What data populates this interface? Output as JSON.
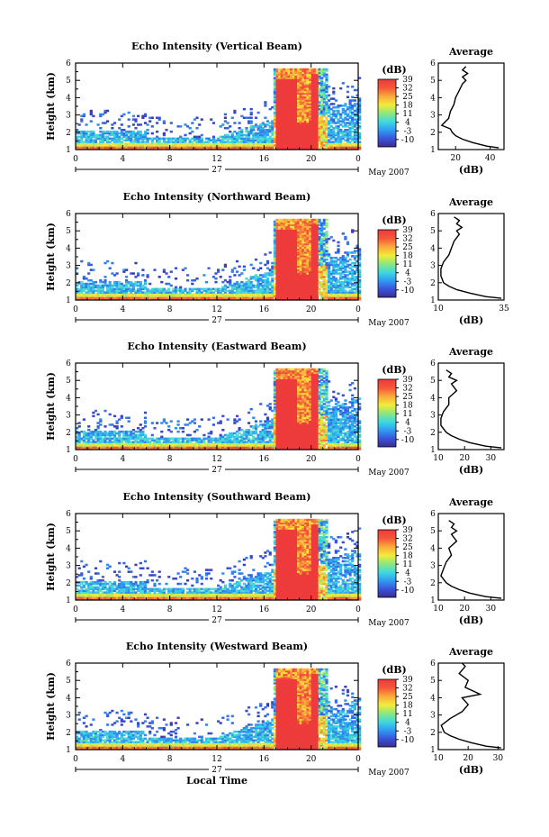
{
  "chart_data": [
    {
      "type": "heatmap",
      "title": "Echo Intensity (Vertical Beam)",
      "ylabel": "Height (km)",
      "ylim": [
        1,
        6
      ],
      "yticks": [
        1,
        2,
        3,
        4,
        5,
        6
      ],
      "xlim": [
        0,
        24
      ],
      "xticks": [
        "0",
        "4",
        "8",
        "12",
        "16",
        "20",
        "0"
      ],
      "date_day": "27",
      "date_month": "May 2007",
      "colorbar": {
        "label": "(dB)",
        "range": [
          -16,
          39
        ],
        "ticks": [
          "39",
          "32",
          "25",
          "18",
          "11",
          "4",
          "-3",
          "-10"
        ]
      },
      "average": {
        "title": "Average",
        "xlabel": "(dB)",
        "xlim": [
          10,
          48
        ],
        "xticks": [
          "20",
          "40"
        ],
        "profile": [
          [
            45,
            1.1
          ],
          [
            38,
            1.2
          ],
          [
            30,
            1.4
          ],
          [
            24,
            1.6
          ],
          [
            20,
            1.8
          ],
          [
            18,
            2.0
          ],
          [
            17,
            2.2
          ],
          [
            12,
            2.4
          ],
          [
            16,
            2.8
          ],
          [
            17,
            3.2
          ],
          [
            19,
            3.6
          ],
          [
            20,
            4.0
          ],
          [
            22,
            4.4
          ],
          [
            24,
            4.8
          ],
          [
            26,
            5.0
          ],
          [
            24,
            5.2
          ],
          [
            27,
            5.4
          ],
          [
            24,
            5.6
          ],
          [
            26,
            5.8
          ]
        ]
      }
    },
    {
      "type": "heatmap",
      "title": "Echo Intensity (Northward Beam)",
      "ylabel": "Height (km)",
      "ylim": [
        1,
        6
      ],
      "yticks": [
        1,
        2,
        3,
        4,
        5,
        6
      ],
      "xlim": [
        0,
        24
      ],
      "xticks": [
        "0",
        "4",
        "8",
        "12",
        "16",
        "20",
        "0"
      ],
      "date_day": "27",
      "date_month": "May 2007",
      "colorbar": {
        "label": "(dB)",
        "range": [
          -16,
          39
        ],
        "ticks": [
          "39",
          "32",
          "25",
          "18",
          "11",
          "4",
          "-3",
          "-10"
        ]
      },
      "average": {
        "title": "Average",
        "xlabel": "(dB)",
        "xlim": [
          10,
          35
        ],
        "xticks": [
          "10",
          "35"
        ],
        "profile": [
          [
            34,
            1.1
          ],
          [
            28,
            1.2
          ],
          [
            22,
            1.4
          ],
          [
            17,
            1.6
          ],
          [
            14,
            1.8
          ],
          [
            12,
            2.0
          ],
          [
            11,
            2.4
          ],
          [
            11,
            2.8
          ],
          [
            12,
            3.2
          ],
          [
            14,
            3.6
          ],
          [
            15,
            4.0
          ],
          [
            16,
            4.4
          ],
          [
            18,
            4.8
          ],
          [
            17,
            5.0
          ],
          [
            19,
            5.2
          ],
          [
            17,
            5.4
          ],
          [
            18,
            5.6
          ],
          [
            16,
            5.8
          ]
        ]
      }
    },
    {
      "type": "heatmap",
      "title": "Echo Intensity (Eastward Beam)",
      "ylabel": "Height (km)",
      "ylim": [
        1,
        6
      ],
      "yticks": [
        1,
        2,
        3,
        4,
        5,
        6
      ],
      "xlim": [
        0,
        24
      ],
      "xticks": [
        "0",
        "4",
        "8",
        "12",
        "16",
        "20",
        "0"
      ],
      "date_day": "27",
      "date_month": "May 2007",
      "colorbar": {
        "label": "(dB)",
        "range": [
          -16,
          39
        ],
        "ticks": [
          "39",
          "32",
          "25",
          "18",
          "11",
          "4",
          "-3",
          "-10"
        ]
      },
      "average": {
        "title": "Average",
        "xlabel": "(dB)",
        "xlim": [
          10,
          35
        ],
        "xticks": [
          "10",
          "20",
          "30"
        ],
        "profile": [
          [
            34,
            1.1
          ],
          [
            28,
            1.2
          ],
          [
            22,
            1.4
          ],
          [
            18,
            1.6
          ],
          [
            15,
            1.8
          ],
          [
            13,
            2.0
          ],
          [
            11,
            2.4
          ],
          [
            11,
            2.8
          ],
          [
            12,
            3.2
          ],
          [
            14,
            3.6
          ],
          [
            14,
            4.0
          ],
          [
            17,
            4.4
          ],
          [
            15,
            4.8
          ],
          [
            17,
            5.0
          ],
          [
            14,
            5.2
          ],
          [
            15,
            5.4
          ],
          [
            13,
            5.6
          ]
        ]
      }
    },
    {
      "type": "heatmap",
      "title": "Echo Intensity (Southward Beam)",
      "ylabel": "Height (km)",
      "ylim": [
        1,
        6
      ],
      "yticks": [
        1,
        2,
        3,
        4,
        5,
        6
      ],
      "xlim": [
        0,
        24
      ],
      "xticks": [
        "0",
        "4",
        "8",
        "12",
        "16",
        "20",
        "0"
      ],
      "date_day": "27",
      "date_month": "May 2007",
      "colorbar": {
        "label": "(dB)",
        "range": [
          -16,
          39
        ],
        "ticks": [
          "39",
          "32",
          "25",
          "18",
          "11",
          "4",
          "-3",
          "-10"
        ]
      },
      "average": {
        "title": "Average",
        "xlabel": "(dB)",
        "xlim": [
          10,
          35
        ],
        "xticks": [
          "10",
          "20",
          "30"
        ],
        "profile": [
          [
            34,
            1.1
          ],
          [
            28,
            1.2
          ],
          [
            22,
            1.4
          ],
          [
            18,
            1.6
          ],
          [
            15,
            1.8
          ],
          [
            13,
            2.0
          ],
          [
            11,
            2.4
          ],
          [
            12,
            2.8
          ],
          [
            13,
            3.2
          ],
          [
            15,
            3.6
          ],
          [
            14,
            4.0
          ],
          [
            17,
            4.4
          ],
          [
            15,
            4.8
          ],
          [
            17,
            5.0
          ],
          [
            15,
            5.2
          ],
          [
            16,
            5.4
          ],
          [
            14,
            5.6
          ]
        ]
      }
    },
    {
      "type": "heatmap",
      "title": "Echo Intensity (Westward Beam)",
      "ylabel": "Height (km)",
      "xlabel": "Local Time",
      "ylim": [
        1,
        6
      ],
      "yticks": [
        1,
        2,
        3,
        4,
        5,
        6
      ],
      "xlim": [
        0,
        24
      ],
      "xticks": [
        "0",
        "4",
        "8",
        "12",
        "16",
        "20",
        "0"
      ],
      "date_day": "27",
      "date_month": "May 2007",
      "colorbar": {
        "label": "(dB)",
        "range": [
          -16,
          39
        ],
        "ticks": [
          "39",
          "32",
          "25",
          "18",
          "11",
          "4",
          "-3",
          "-10"
        ]
      },
      "average": {
        "title": "Average",
        "xlabel": "(dB)",
        "xlim": [
          10,
          32
        ],
        "xticks": [
          "10",
          "20",
          "30"
        ],
        "profile": [
          [
            31,
            1.1
          ],
          [
            26,
            1.2
          ],
          [
            21,
            1.4
          ],
          [
            17,
            1.6
          ],
          [
            14,
            1.8
          ],
          [
            12,
            2.0
          ],
          [
            11,
            2.4
          ],
          [
            14,
            2.8
          ],
          [
            18,
            3.2
          ],
          [
            20,
            3.6
          ],
          [
            18,
            4.0
          ],
          [
            24,
            4.2
          ],
          [
            19,
            4.6
          ],
          [
            20,
            5.0
          ],
          [
            17,
            5.4
          ],
          [
            19,
            5.8
          ],
          [
            18,
            6.0
          ]
        ]
      }
    }
  ]
}
